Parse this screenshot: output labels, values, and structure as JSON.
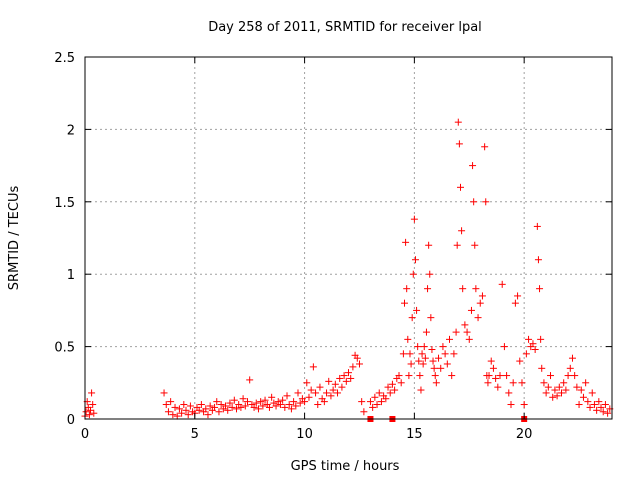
{
  "chart_data": {
    "type": "scatter",
    "title": "Day 258 of 2011, SRMTID for receiver lpal",
    "xlabel": "GPS time / hours",
    "ylabel": "SRMTID / TECUs",
    "xlim": [
      0,
      24
    ],
    "ylim": [
      0,
      2.5
    ],
    "xticks": [
      0,
      5,
      10,
      15,
      20
    ],
    "yticks": [
      0,
      0.5,
      1,
      1.5,
      2,
      2.5
    ],
    "xtick_labels": [
      "0",
      "5",
      "10",
      "15",
      "20"
    ],
    "ytick_labels": [
      "0",
      "0.5",
      "1",
      "1.5",
      "2",
      "2.5"
    ],
    "grid": true,
    "marker": "+",
    "color": "#ff0000",
    "series": [
      {
        "name": "SRMTID lpal",
        "x": [
          0.0,
          0.05,
          0.1,
          0.15,
          0.2,
          0.25,
          0.3,
          0.35,
          0.4,
          3.6,
          3.7,
          3.8,
          3.9,
          4.0,
          4.1,
          4.2,
          4.3,
          4.4,
          4.5,
          4.6,
          4.7,
          4.8,
          4.9,
          5.0,
          5.1,
          5.2,
          5.3,
          5.4,
          5.5,
          5.6,
          5.7,
          5.8,
          5.9,
          6.0,
          6.1,
          6.2,
          6.3,
          6.4,
          6.5,
          6.6,
          6.7,
          6.8,
          6.9,
          7.0,
          7.1,
          7.2,
          7.3,
          7.4,
          7.5,
          7.6,
          7.7,
          7.8,
          7.9,
          8.0,
          8.1,
          8.2,
          8.3,
          8.4,
          8.5,
          8.6,
          8.7,
          8.8,
          8.9,
          9.0,
          9.1,
          9.2,
          9.3,
          9.4,
          9.5,
          9.6,
          9.7,
          9.8,
          9.9,
          10.0,
          10.1,
          10.2,
          10.3,
          10.4,
          10.5,
          10.6,
          10.7,
          10.8,
          10.9,
          11.0,
          11.1,
          11.2,
          11.3,
          11.4,
          11.5,
          11.6,
          11.7,
          11.8,
          11.9,
          12.0,
          12.1,
          12.2,
          12.3,
          12.4,
          12.5,
          12.6,
          12.7,
          13.0,
          13.1,
          13.2,
          13.3,
          13.4,
          13.5,
          13.6,
          13.7,
          13.8,
          13.9,
          14.0,
          14.1,
          14.2,
          14.3,
          14.4,
          14.5,
          14.55,
          14.6,
          14.65,
          14.7,
          14.75,
          14.8,
          14.85,
          14.9,
          14.95,
          15.0,
          15.05,
          15.1,
          15.15,
          15.2,
          15.25,
          15.3,
          15.35,
          15.4,
          15.45,
          15.5,
          15.55,
          15.6,
          15.65,
          15.7,
          15.75,
          15.8,
          15.85,
          15.9,
          15.95,
          16.0,
          16.1,
          16.2,
          16.3,
          16.4,
          16.5,
          16.6,
          16.7,
          16.8,
          16.9,
          16.95,
          17.0,
          17.05,
          17.1,
          17.15,
          17.2,
          17.3,
          17.4,
          17.5,
          17.6,
          17.65,
          17.7,
          17.75,
          17.8,
          17.9,
          18.0,
          18.1,
          18.2,
          18.25,
          18.3,
          18.35,
          18.4,
          18.5,
          18.6,
          18.7,
          18.8,
          18.9,
          19.0,
          19.1,
          19.2,
          19.3,
          19.4,
          19.5,
          19.6,
          19.7,
          19.8,
          19.9,
          20.0,
          20.1,
          20.2,
          20.3,
          20.4,
          20.5,
          20.6,
          20.65,
          20.7,
          20.75,
          20.8,
          20.9,
          21.0,
          21.1,
          21.2,
          21.3,
          21.4,
          21.5,
          21.6,
          21.7,
          21.8,
          21.9,
          22.0,
          22.1,
          22.2,
          22.3,
          22.4,
          22.5,
          22.6,
          22.7,
          22.8,
          22.9,
          23.0,
          23.1,
          23.2,
          23.3,
          23.4,
          23.5,
          23.6,
          23.7,
          23.8,
          23.9
        ],
        "y": [
          0.02,
          0.05,
          0.12,
          0.08,
          0.03,
          0.06,
          0.18,
          0.1,
          0.04,
          0.18,
          0.1,
          0.05,
          0.12,
          0.03,
          0.08,
          0.02,
          0.07,
          0.04,
          0.1,
          0.06,
          0.03,
          0.09,
          0.05,
          0.04,
          0.08,
          0.06,
          0.1,
          0.05,
          0.07,
          0.03,
          0.09,
          0.06,
          0.08,
          0.12,
          0.05,
          0.1,
          0.07,
          0.09,
          0.06,
          0.11,
          0.08,
          0.13,
          0.07,
          0.1,
          0.08,
          0.14,
          0.09,
          0.12,
          0.27,
          0.1,
          0.08,
          0.11,
          0.07,
          0.12,
          0.09,
          0.13,
          0.1,
          0.08,
          0.15,
          0.11,
          0.09,
          0.12,
          0.1,
          0.13,
          0.08,
          0.16,
          0.1,
          0.07,
          0.12,
          0.09,
          0.18,
          0.11,
          0.14,
          0.12,
          0.25,
          0.15,
          0.2,
          0.36,
          0.18,
          0.1,
          0.22,
          0.14,
          0.12,
          0.18,
          0.26,
          0.16,
          0.2,
          0.24,
          0.18,
          0.28,
          0.22,
          0.3,
          0.26,
          0.32,
          0.28,
          0.36,
          0.44,
          0.42,
          0.38,
          0.12,
          0.05,
          0.12,
          0.08,
          0.15,
          0.1,
          0.18,
          0.12,
          0.16,
          0.14,
          0.22,
          0.18,
          0.24,
          0.2,
          0.28,
          0.3,
          0.25,
          0.45,
          0.8,
          1.22,
          0.9,
          0.55,
          0.3,
          0.45,
          0.38,
          0.7,
          1.0,
          1.38,
          1.1,
          0.75,
          0.5,
          0.4,
          0.3,
          0.2,
          0.45,
          0.38,
          0.5,
          0.42,
          0.6,
          0.9,
          1.2,
          1.0,
          0.7,
          0.48,
          0.4,
          0.35,
          0.3,
          0.25,
          0.42,
          0.35,
          0.5,
          0.45,
          0.38,
          0.55,
          0.3,
          0.45,
          0.6,
          1.2,
          2.05,
          1.9,
          1.6,
          1.3,
          0.9,
          0.65,
          0.6,
          0.55,
          0.75,
          1.75,
          1.5,
          1.2,
          0.9,
          0.7,
          0.8,
          0.85,
          1.88,
          1.5,
          0.3,
          0.25,
          0.3,
          0.4,
          0.35,
          0.28,
          0.22,
          0.3,
          0.93,
          0.5,
          0.3,
          0.18,
          0.1,
          0.25,
          0.8,
          0.85,
          0.4,
          0.25,
          0.1,
          0.45,
          0.55,
          0.5,
          0.52,
          0.48,
          1.33,
          1.1,
          0.9,
          0.55,
          0.35,
          0.25,
          0.18,
          0.22,
          0.3,
          0.15,
          0.2,
          0.16,
          0.22,
          0.18,
          0.25,
          0.2,
          0.3,
          0.35,
          0.42,
          0.3,
          0.22,
          0.1,
          0.2,
          0.15,
          0.25,
          0.12,
          0.08,
          0.18,
          0.1,
          0.06,
          0.12,
          0.08,
          0.05,
          0.1,
          0.04,
          0.07
        ]
      }
    ],
    "special_markers": {
      "marker": "square",
      "x": [
        13.0,
        14.0,
        20.0
      ],
      "y": [
        0,
        0,
        0
      ]
    }
  }
}
